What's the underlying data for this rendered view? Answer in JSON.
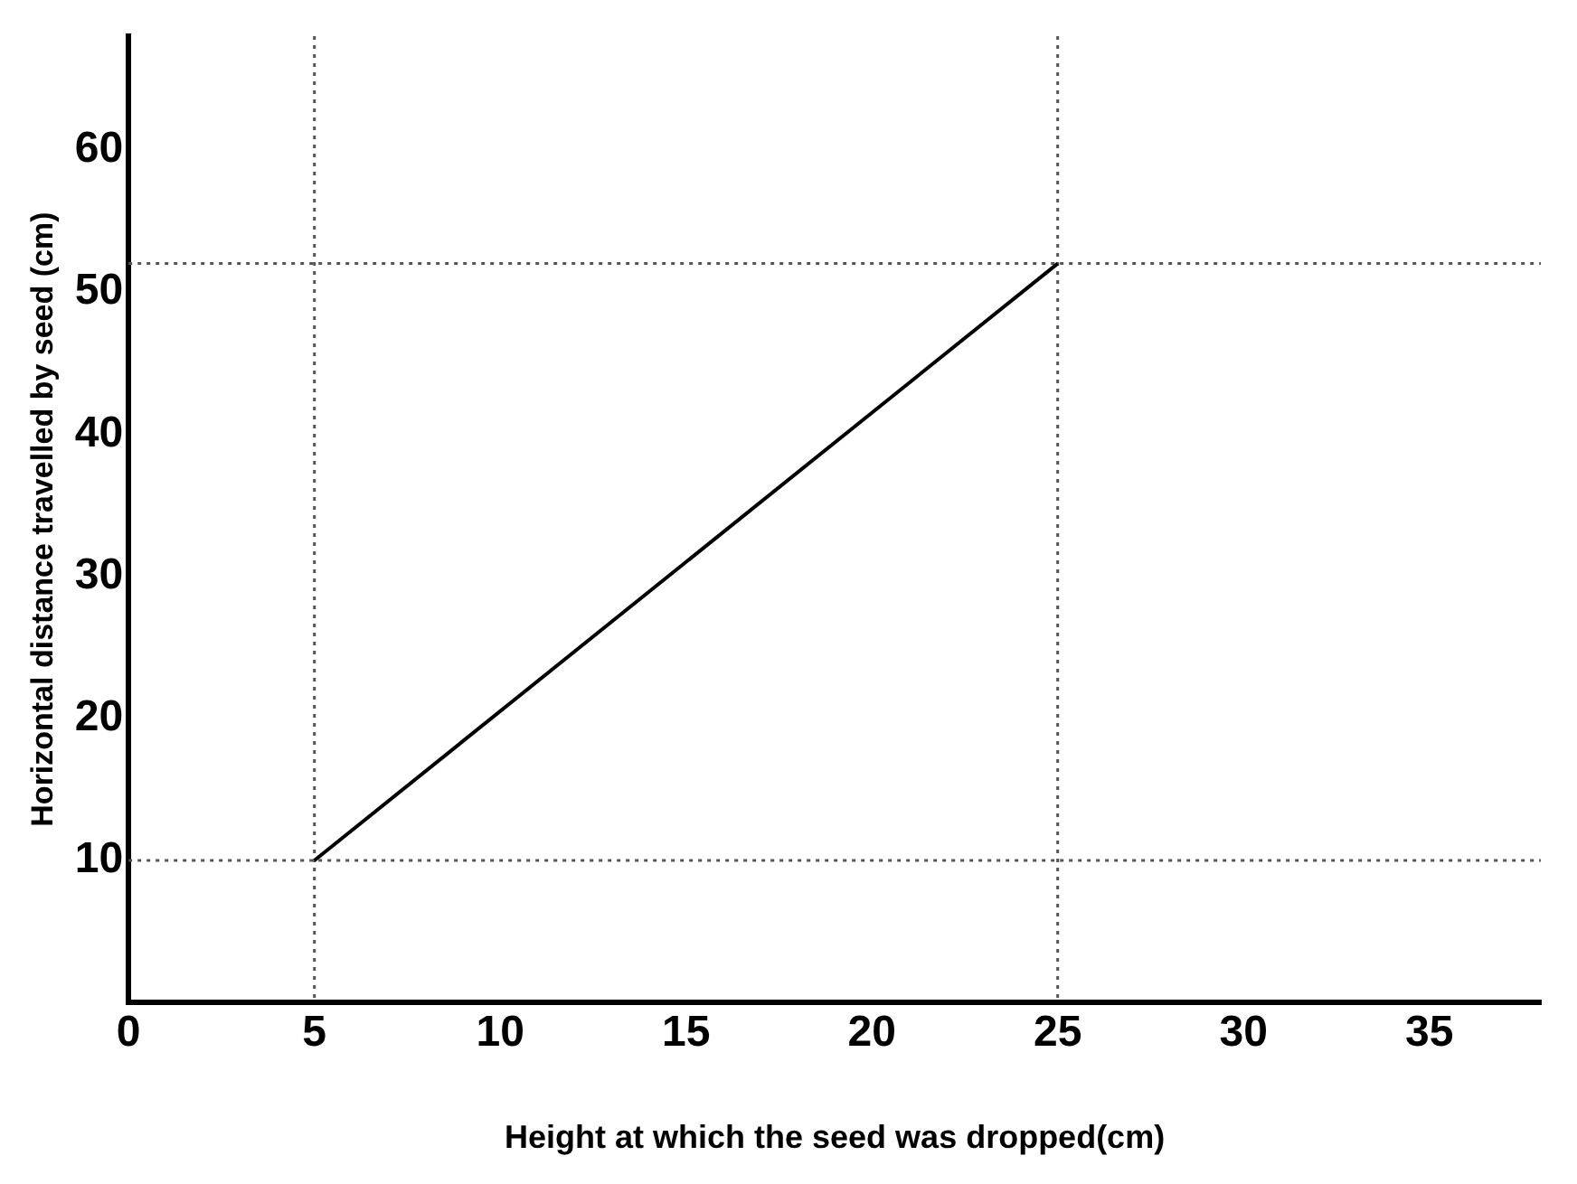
{
  "chart_data": {
    "type": "line",
    "xlabel": "Height at which the seed was dropped(cm)",
    "ylabel": "Horizontal distance travelled by seed (cm)",
    "x": [
      5,
      25
    ],
    "values": [
      10,
      52
    ],
    "color": "#000000",
    "xlim": [
      0,
      38
    ],
    "xticks": [
      0,
      5,
      10,
      15,
      20,
      25,
      30,
      35
    ],
    "ylim": [
      0,
      68
    ],
    "yticks": [
      10,
      20,
      30,
      40,
      50,
      60
    ],
    "ref_lines": [
      {
        "axis": "x",
        "value": 5,
        "line_style": "dotted",
        "color": "#555555"
      },
      {
        "axis": "x",
        "value": 25,
        "line_style": "dotted",
        "color": "#555555"
      },
      {
        "axis": "y",
        "value": 10,
        "line_style": "dotted",
        "color": "#555555"
      },
      {
        "axis": "y",
        "value": 52,
        "line_style": "dotted",
        "color": "#555555"
      }
    ],
    "grid": false,
    "legend": false,
    "marker": "none",
    "line_style": "solid"
  }
}
